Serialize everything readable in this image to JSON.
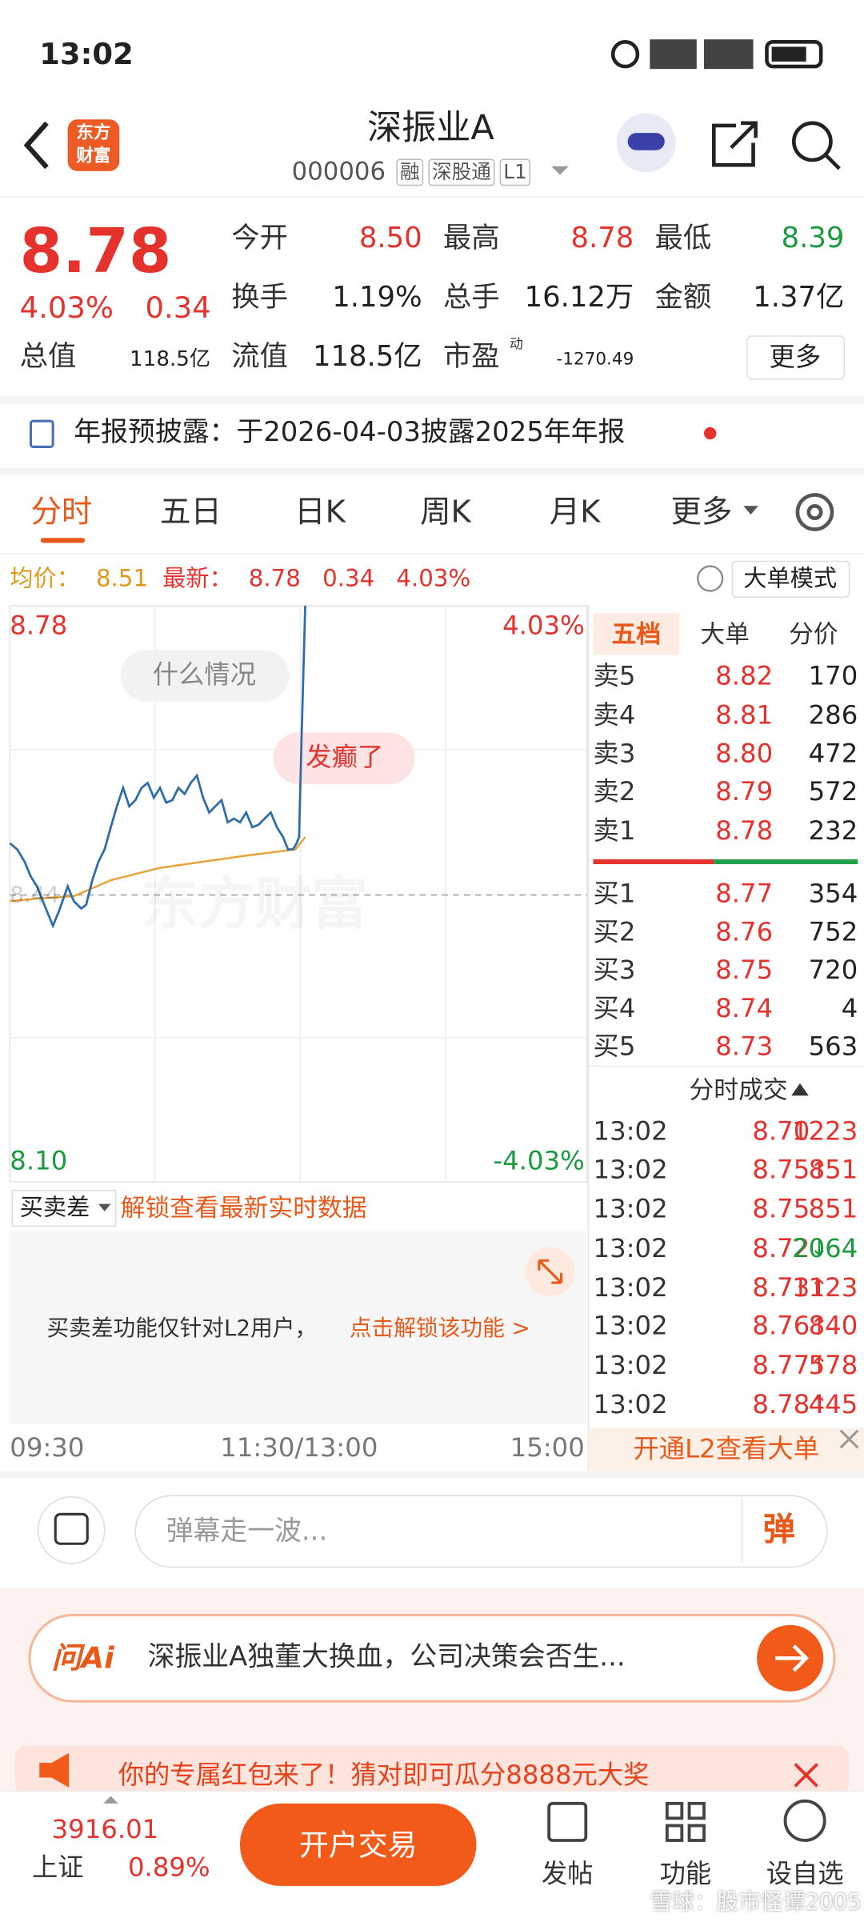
{
  "status_bar": {
    "time": "13:02"
  },
  "header": {
    "logo": [
      "东方",
      "财富"
    ],
    "title": "深振业A",
    "code": "000006",
    "tags": [
      "融",
      "深股通",
      "L1"
    ]
  },
  "quote": {
    "price": "8.78",
    "change_pct": "4.03%",
    "change": "0.34",
    "stats": [
      {
        "label": "今开",
        "value": "8.50"
      },
      {
        "label": "最高",
        "value": "8.78"
      },
      {
        "label": "最低",
        "value": "8.39"
      },
      {
        "label": "换手",
        "value": "1.19%"
      },
      {
        "label": "总手",
        "value": "16.12万"
      },
      {
        "label": "金额",
        "value": "1.37亿"
      }
    ],
    "market_cap": {
      "label": "总值",
      "value": "118.5亿"
    },
    "float_cap": {
      "label": "流值",
      "value": "118.5亿"
    },
    "pe": {
      "label": "市盈",
      "sup": "动",
      "value": "-1270.49"
    },
    "more": "更多"
  },
  "notice": "年报预披露：于2026-04-03披露2025年年报",
  "tabs": [
    "分时",
    "五日",
    "日K",
    "周K",
    "月K",
    "更多"
  ],
  "summary": {
    "avg_label": "均价：",
    "avg": "8.51",
    "latest_label": "最新：",
    "latest": "8.78",
    "change": "0.34",
    "change_pct": "4.03%",
    "mode": "大单模式"
  },
  "intraday": {
    "high": "8.78",
    "high_pct": "4.03%",
    "low": "8.10",
    "low_pct": "-4.03%",
    "prev_close": "8.44",
    "bubbles": [
      "什么情况",
      "发癫了"
    ],
    "watermark": "东方财富",
    "times": [
      "09:30",
      "11:30/13:00",
      "15:00"
    ]
  },
  "order_book": {
    "tabs": [
      "五档",
      "大单",
      "分价"
    ],
    "asks": [
      {
        "label": "卖5",
        "price": "8.82",
        "volume": "170"
      },
      {
        "label": "卖4",
        "price": "8.81",
        "volume": "286"
      },
      {
        "label": "卖3",
        "price": "8.80",
        "volume": "472"
      },
      {
        "label": "卖2",
        "price": "8.79",
        "volume": "572"
      },
      {
        "label": "卖1",
        "price": "8.78",
        "volume": "232"
      }
    ],
    "bids": [
      {
        "label": "买1",
        "price": "8.77",
        "volume": "354"
      },
      {
        "label": "买2",
        "price": "8.76",
        "volume": "752"
      },
      {
        "label": "买3",
        "price": "8.75",
        "volume": "720"
      },
      {
        "label": "买4",
        "price": "8.74",
        "volume": "4"
      },
      {
        "label": "买5",
        "price": "8.73",
        "volume": "563"
      }
    ]
  },
  "trades": {
    "title": "分时成交",
    "rows": [
      {
        "time": "13:02",
        "price": "8.70",
        "volume": "1223"
      },
      {
        "time": "13:02",
        "price": "8.75",
        "arrow": "↑",
        "volume": "851"
      },
      {
        "time": "13:02",
        "price": "8.75",
        "volume": "851"
      },
      {
        "time": "13:02",
        "price": "8.72",
        "arrow": "↓",
        "volume": "2064"
      },
      {
        "time": "13:02",
        "price": "8.73",
        "arrow": "↑",
        "volume": "1123"
      },
      {
        "time": "13:02",
        "price": "8.76",
        "arrow": "↑",
        "volume": "840"
      },
      {
        "time": "13:02",
        "price": "8.77",
        "arrow": "↑",
        "volume": "578"
      },
      {
        "time": "13:02",
        "price": "8.78",
        "arrow": "↑",
        "volume": "445"
      }
    ]
  },
  "l2_banner": "开通L2查看大单",
  "spread": {
    "label": "买卖差",
    "unlock": "解锁查看最新实时数据",
    "notice": "买卖差功能仅针对L2用户，",
    "link": "点击解锁该功能 >"
  },
  "comment": {
    "placeholder": "弹幕走一波...",
    "button": "弹"
  },
  "ai": {
    "badge": "问Ai",
    "text": "深振业A独董大换血，公司决策会否生..."
  },
  "promo": "你的专属红包来了！猜对即可瓜分8888元大奖",
  "bottom_bar": {
    "index_value": "3916.01",
    "index_name": "上证",
    "index_pct": "0.89%",
    "trade_button": "开户交易",
    "nav": [
      "发帖",
      "功能",
      "设自选"
    ]
  },
  "watermark": "雪球：股市怪谭2005"
}
